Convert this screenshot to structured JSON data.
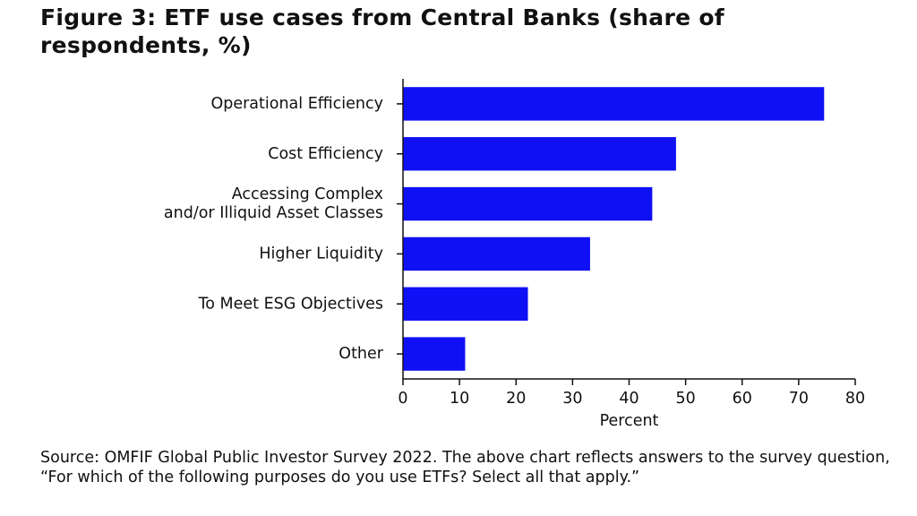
{
  "figure": {
    "title": "Figure 3: ETF use cases from Central Banks (share of respondents, %)",
    "source": "Source: OMFIF Global Public Investor Survey 2022. The above chart reflects answers to the survey question, “For which of the following purposes do you use ETFs? Select all that apply.”"
  },
  "chart_data": {
    "type": "bar",
    "orientation": "horizontal",
    "categories": [
      [
        "Operational Efficiency"
      ],
      [
        "Cost Efficiency"
      ],
      [
        "Accessing Complex",
        "and/or Illiquid Asset Classes"
      ],
      [
        "Higher Liquidity"
      ],
      [
        "To Meet ESG Objectives"
      ],
      [
        "Other"
      ]
    ],
    "values": [
      74.5,
      48.3,
      44.1,
      33.1,
      22.1,
      11.0
    ],
    "xlabel": "Percent",
    "ylabel": "",
    "xlim": [
      0,
      80
    ],
    "xticks": [
      0,
      10,
      20,
      30,
      40,
      50,
      60,
      70,
      80
    ],
    "bar_color": "#1010f5",
    "axis_color": "#111111",
    "grid": false
  }
}
